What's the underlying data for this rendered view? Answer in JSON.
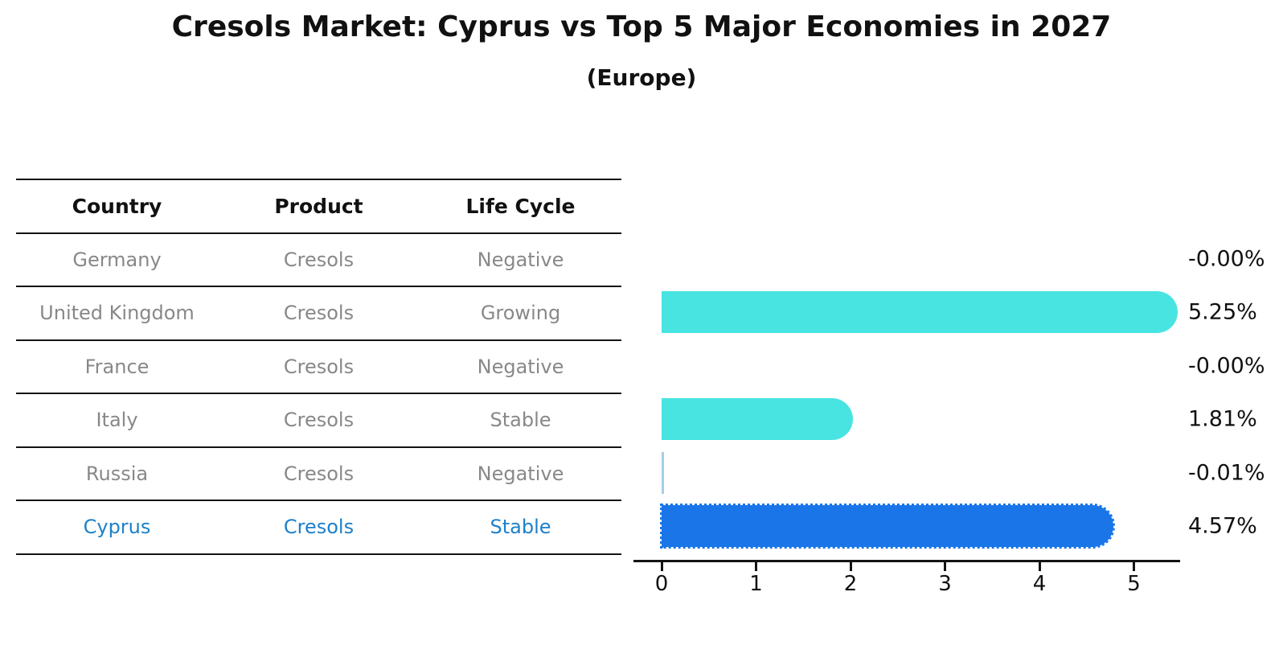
{
  "title": "Cresols Market: Cyprus vs Top 5 Major Economies in 2027",
  "subtitle": "(Europe)",
  "table": {
    "headers": [
      "Country",
      "Product",
      "Life Cycle"
    ],
    "rows": [
      {
        "country": "Germany",
        "product": "Cresols",
        "life_cycle": "Negative",
        "highlight": false
      },
      {
        "country": "United Kingdom",
        "product": "Cresols",
        "life_cycle": "Growing",
        "highlight": false
      },
      {
        "country": "France",
        "product": "Cresols",
        "life_cycle": "Negative",
        "highlight": false
      },
      {
        "country": "Italy",
        "product": "Cresols",
        "life_cycle": "Stable",
        "highlight": false
      },
      {
        "country": "Russia",
        "product": "Cresols",
        "life_cycle": "Negative",
        "highlight": false
      },
      {
        "country": "Cyprus",
        "product": "Cresols",
        "life_cycle": "Stable",
        "highlight": true
      }
    ]
  },
  "chart_data": {
    "type": "bar",
    "orientation": "horizontal",
    "title": "Cresols Market: Cyprus vs Top 5 Major Economies in 2027",
    "subtitle": "(Europe)",
    "categories": [
      "Germany",
      "United Kingdom",
      "France",
      "Italy",
      "Russia",
      "Cyprus"
    ],
    "values": [
      -0.0,
      5.25,
      -0.0,
      1.81,
      -0.01,
      4.57
    ],
    "labels": [
      "-0.00%",
      "5.25%",
      "-0.00%",
      "1.81%",
      "-0.01%",
      "4.57%"
    ],
    "bar_styles": [
      "none",
      "bar",
      "none",
      "bar",
      "line",
      "bar-dotted"
    ],
    "bar_colors": [
      "#47E4E1",
      "#47E4E1",
      "#47E4E1",
      "#47E4E1",
      "#A5CEE8",
      "#1A76E8"
    ],
    "xlabel": "",
    "ylabel": "",
    "xticks": [
      0,
      1,
      2,
      3,
      4,
      5
    ],
    "xlim": [
      -0.3,
      5.5
    ],
    "grid": false,
    "legend": false,
    "colors": {
      "cyan_bar": "#47E4E1",
      "blue_bar": "#1A76E8",
      "pale_blue_bar": "#A5CEE8",
      "highlight_text": "#1E80C9",
      "table_text": "#888888",
      "axis": "#141414"
    }
  }
}
